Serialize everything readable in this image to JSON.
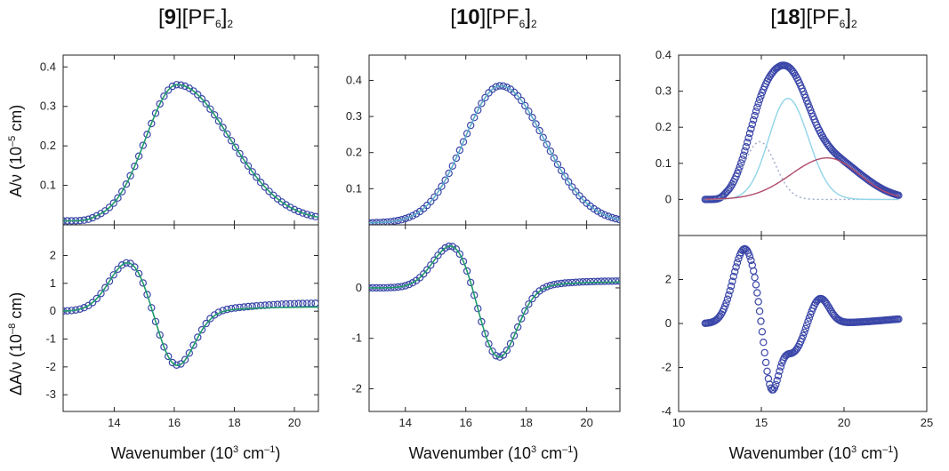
{
  "panels": [
    {
      "id": "9",
      "title_bold": "9",
      "title_rest": "[PF",
      "title_sub": "6",
      "title_end": "]",
      "title_sub2": "2",
      "xlabel_main": "Wavenumber (10",
      "xlabel_sup1": "3",
      "xlabel_mid": " cm",
      "xlabel_sup2": "–1",
      "xlabel_end": ")"
    },
    {
      "id": "10",
      "title_bold": "10",
      "title_rest": "[PF",
      "title_sub": "6",
      "title_end": "]",
      "title_sub2": "2",
      "xlabel_main": "Wavenumber (10",
      "xlabel_sup1": "3",
      "xlabel_mid": " cm",
      "xlabel_sup2": "–1",
      "xlabel_end": ")"
    },
    {
      "id": "18",
      "title_bold": "18",
      "title_rest": "[PF",
      "title_sub": "6",
      "title_end": "]",
      "title_sub2": "2",
      "xlabel_main": "Wavenumber (10",
      "xlabel_sup1": "3",
      "xlabel_mid": " cm",
      "xlabel_sup2": "–1",
      "xlabel_end": ")"
    }
  ],
  "ylabel_top": {
    "main": "A/ν (10",
    "sup": "–5",
    "end": " cm)"
  },
  "ylabel_bottom": {
    "main": "ΔA/ν (10",
    "sup": "–8",
    "end": " cm)"
  },
  "colors": {
    "markers": "#3a46a8",
    "fit_green": "#1f9a6a",
    "fit_blue": "#5aaac8",
    "component_cyan": "#8fd4e8",
    "component_red": "#b04a6a",
    "component_dotted": "#9aa8c8"
  },
  "chart_data": [
    {
      "type": "scatter",
      "panel": "9",
      "position": "top",
      "xlim": [
        12.3,
        20.8
      ],
      "ylim": [
        0,
        0.43
      ],
      "xticks": [
        14,
        16,
        18,
        20
      ],
      "xtick_labels_shown": false,
      "yticks": [
        0.1,
        0.2,
        0.3,
        0.4
      ],
      "ytick_labels": [
        "0.1",
        "0.2",
        "0.3",
        "0.4"
      ],
      "series": [
        {
          "kind": "markers",
          "model": "gauss",
          "params": {
            "amp": 0.345,
            "center": 16.1,
            "sigma_left": 1.05,
            "sigma_right": 1.75,
            "onset": 13.5,
            "baseline": 0.01,
            "x_min": 12.3,
            "x_max": 20.8,
            "step": 0.14
          }
        },
        {
          "kind": "fit",
          "color": "fit_green",
          "model": "gauss",
          "params": {
            "amp": 0.345,
            "center": 16.1,
            "sigma_left": 1.05,
            "sigma_right": 1.75,
            "onset": 13.5,
            "baseline": 0.01,
            "x_min": 12.3,
            "x_max": 20.8
          }
        }
      ]
    },
    {
      "type": "scatter",
      "panel": "9",
      "position": "bottom",
      "xlim": [
        12.3,
        20.8
      ],
      "ylim": [
        -3.6,
        3.1
      ],
      "xticks": [
        14,
        16,
        18,
        20
      ],
      "xtick_labels": [
        "14",
        "16",
        "18",
        "20"
      ],
      "yticks": [
        -3,
        -2,
        -1,
        0,
        1,
        2
      ],
      "ytick_labels": [
        "-3",
        "-2",
        "-1",
        "0",
        "1",
        "2"
      ],
      "series": [
        {
          "kind": "markers",
          "model": "deriv",
          "params": {
            "peaks": [
              [
                14.5,
                1.8,
                0.65
              ],
              [
                16.05,
                -2.05,
                0.6
              ]
            ],
            "tail": [
              0.3,
              18.3,
              0.8
            ],
            "x_min": 12.3,
            "x_max": 20.8,
            "step": 0.14
          }
        },
        {
          "kind": "fit",
          "color": "fit_green",
          "model": "deriv",
          "params": {
            "peaks": [
              [
                14.5,
                1.8,
                0.65
              ],
              [
                16.05,
                -2.05,
                0.6
              ]
            ],
            "tail": [
              0.15,
              18.1,
              0.7
            ],
            "x_min": 12.3,
            "x_max": 20.8
          }
        }
      ]
    },
    {
      "type": "scatter",
      "panel": "10",
      "position": "top",
      "xlim": [
        12.8,
        21.1
      ],
      "ylim": [
        0,
        0.47
      ],
      "xticks": [
        14,
        16,
        18,
        20
      ],
      "xtick_labels_shown": false,
      "yticks": [
        0.1,
        0.2,
        0.3,
        0.4
      ],
      "ytick_labels": [
        "0.1",
        "0.2",
        "0.3",
        "0.4"
      ],
      "series": [
        {
          "kind": "markers",
          "model": "gauss",
          "params": {
            "amp": 0.38,
            "center": 17.15,
            "sigma_left": 1.2,
            "sigma_right": 1.45,
            "onset": 0,
            "baseline": 0.005,
            "x_min": 12.8,
            "x_max": 21.1,
            "step": 0.12
          }
        },
        {
          "kind": "fit",
          "color": "fit_blue",
          "model": "gauss",
          "params": {
            "amp": 0.38,
            "center": 17.15,
            "sigma_left": 1.2,
            "sigma_right": 1.45,
            "onset": 0,
            "baseline": 0.005,
            "x_min": 12.8,
            "x_max": 21.1
          }
        }
      ]
    },
    {
      "type": "scatter",
      "panel": "10",
      "position": "bottom",
      "xlim": [
        12.8,
        21.1
      ],
      "ylim": [
        -2.45,
        1.25
      ],
      "xticks": [
        14,
        16,
        18,
        20
      ],
      "xtick_labels": [
        "14",
        "16",
        "18",
        "20"
      ],
      "yticks": [
        -2,
        -1,
        0
      ],
      "ytick_labels": [
        "-2",
        "-1",
        "0"
      ],
      "series": [
        {
          "kind": "markers",
          "model": "deriv",
          "params": {
            "peaks": [
              [
                15.6,
                0.9,
                0.65
              ],
              [
                17.05,
                -1.45,
                0.62
              ]
            ],
            "tail": [
              0.14,
              18.7,
              0.7
            ],
            "x_min": 12.8,
            "x_max": 21.1,
            "step": 0.12
          }
        },
        {
          "kind": "fit",
          "color": "fit_green",
          "model": "deriv",
          "params": {
            "peaks": [
              [
                15.6,
                0.9,
                0.65
              ],
              [
                17.05,
                -1.45,
                0.62
              ]
            ],
            "tail": [
              0.12,
              18.7,
              0.7
            ],
            "x_min": 12.8,
            "x_max": 21.1
          }
        }
      ]
    },
    {
      "type": "scatter",
      "panel": "18",
      "position": "top",
      "xlim": [
        10,
        25
      ],
      "ylim": [
        -0.1,
        0.4
      ],
      "xticks": [
        10,
        15,
        20,
        25
      ],
      "xtick_labels_shown": false,
      "yticks": [
        0,
        0.1,
        0.2,
        0.3,
        0.4
      ],
      "ytick_labels": [
        "0",
        "0.1",
        "0.2",
        "0.3",
        "0.4"
      ],
      "series": [
        {
          "kind": "markers",
          "model": "sum",
          "params": {
            "components": [
              [
                0.16,
                14.9,
                0.95
              ],
              [
                0.28,
                16.6,
                1.2
              ],
              [
                0.115,
                19.0,
                2.0
              ]
            ],
            "onset": 12.9,
            "x_min": 11.6,
            "x_max": 23.3,
            "step": 0.075
          }
        },
        {
          "kind": "component",
          "color": "component_dotted",
          "dash": "2,3",
          "model": "gauss",
          "params": {
            "amp": 0.16,
            "center": 14.9,
            "sigma_left": 0.95,
            "sigma_right": 0.95,
            "onset": 0,
            "baseline": 0,
            "x_min": 11.6,
            "x_max": 23.3
          }
        },
        {
          "kind": "component",
          "color": "component_cyan",
          "model": "gauss",
          "params": {
            "amp": 0.28,
            "center": 16.6,
            "sigma_left": 1.15,
            "sigma_right": 1.25,
            "onset": 0,
            "baseline": 0,
            "x_min": 11.6,
            "x_max": 23.3
          }
        },
        {
          "kind": "component",
          "color": "component_red",
          "model": "gauss",
          "params": {
            "amp": 0.115,
            "center": 19.0,
            "sigma_left": 2.2,
            "sigma_right": 1.9,
            "onset": 0,
            "baseline": 0,
            "x_min": 11.6,
            "x_max": 23.3
          }
        }
      ]
    },
    {
      "type": "scatter",
      "panel": "18",
      "position": "bottom",
      "xlim": [
        10,
        25
      ],
      "ylim": [
        -4,
        4
      ],
      "xticks": [
        10,
        15,
        20,
        25
      ],
      "xtick_labels": [
        "10",
        "15",
        "20",
        "25"
      ],
      "yticks": [
        -4,
        -2,
        0,
        2
      ],
      "ytick_labels": [
        "-4",
        "-2",
        "0",
        "2"
      ],
      "series": [
        {
          "kind": "markers",
          "model": "deriv",
          "params": {
            "peaks": [
              [
                14.0,
                3.4,
                0.7
              ],
              [
                15.6,
                -3.1,
                0.45
              ],
              [
                16.9,
                -1.3,
                0.6
              ],
              [
                18.55,
                1.15,
                0.55
              ]
            ],
            "tail": [
              0.3,
              22.5,
              1.2
            ],
            "x_min": 11.6,
            "x_max": 23.3,
            "step": 0.075
          }
        }
      ]
    }
  ]
}
